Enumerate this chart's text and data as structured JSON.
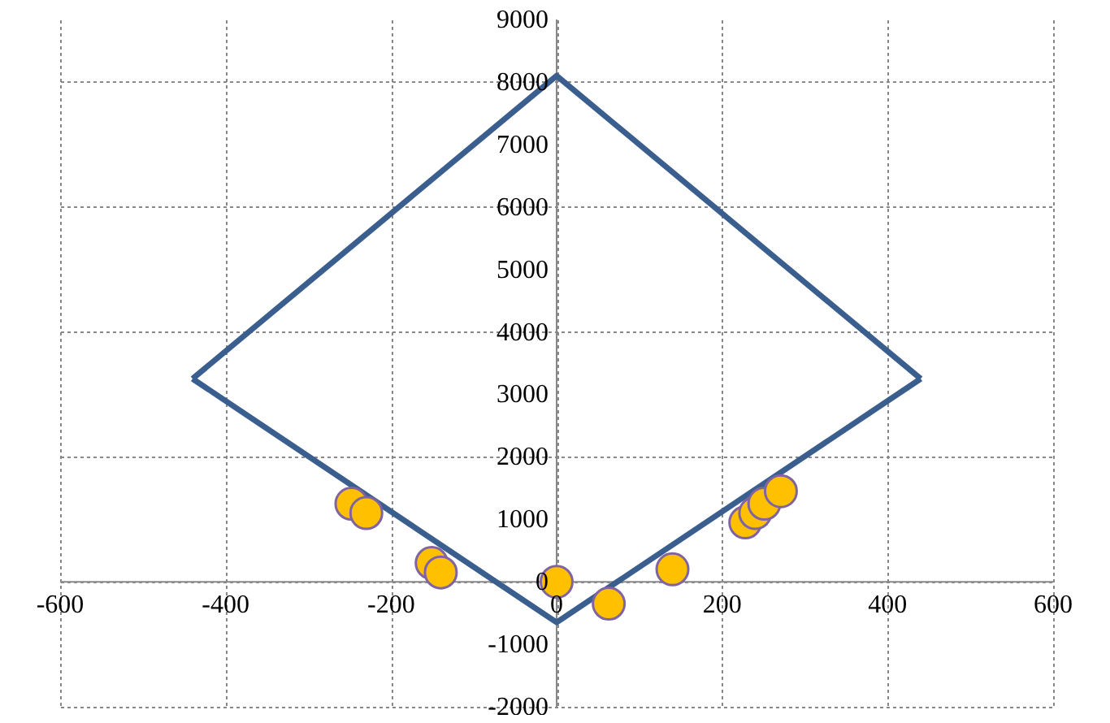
{
  "chart_data": {
    "type": "scatter",
    "xlim": [
      -600,
      600
    ],
    "ylim": [
      -2000,
      9000
    ],
    "xticks": [
      -600,
      -400,
      -200,
      0,
      200,
      400,
      600
    ],
    "yticks": [
      -2000,
      -1000,
      0,
      1000,
      2000,
      3000,
      4000,
      5000,
      6000,
      7000,
      8000,
      9000
    ],
    "grid": true,
    "marker": "circle",
    "series": [
      {
        "type": "line",
        "marker": "none",
        "color": "#3a5f8f",
        "x": [
          -440,
          0,
          440
        ],
        "values": [
          3250,
          8100,
          3250
        ]
      },
      {
        "type": "line",
        "marker": "none",
        "color": "#3a5f8f",
        "x": [
          -440,
          0,
          440
        ],
        "values": [
          3250,
          -650,
          3250
        ]
      },
      {
        "color": "#ffc000",
        "x": [
          -248,
          -230,
          -151,
          -140,
          0,
          63,
          140,
          228,
          240,
          251,
          271
        ],
        "values": [
          1250,
          1100,
          300,
          150,
          0,
          -350,
          200,
          950,
          1100,
          1250,
          1450
        ]
      }
    ]
  }
}
